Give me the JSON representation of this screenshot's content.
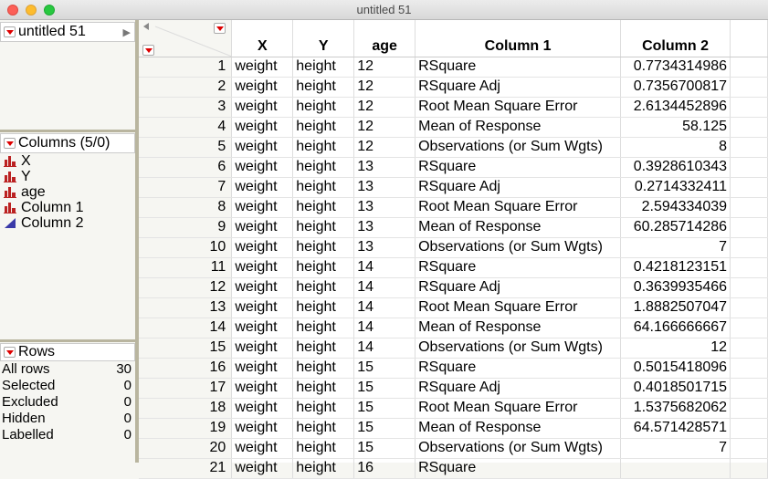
{
  "window": {
    "title": "untitled 51"
  },
  "table_panel": {
    "name": "untitled 51"
  },
  "columns_panel": {
    "title": "Columns (5/0)",
    "columns": [
      {
        "name": "X",
        "type": "nominal"
      },
      {
        "name": "Y",
        "type": "nominal"
      },
      {
        "name": "age",
        "type": "nominal"
      },
      {
        "name": "Column 1",
        "type": "nominal"
      },
      {
        "name": "Column 2",
        "type": "continuous"
      }
    ]
  },
  "rows_panel": {
    "title": "Rows",
    "stats": [
      {
        "label": "All rows",
        "value": "30"
      },
      {
        "label": "Selected",
        "value": "0"
      },
      {
        "label": "Excluded",
        "value": "0"
      },
      {
        "label": "Hidden",
        "value": "0"
      },
      {
        "label": "Labelled",
        "value": "0"
      }
    ]
  },
  "grid": {
    "headers": [
      "X",
      "Y",
      "age",
      "Column 1",
      "Column 2"
    ],
    "rows": [
      [
        "1",
        "weight",
        "height",
        "12",
        "RSquare",
        "0.7734314986"
      ],
      [
        "2",
        "weight",
        "height",
        "12",
        "RSquare Adj",
        "0.7356700817"
      ],
      [
        "3",
        "weight",
        "height",
        "12",
        "Root Mean Square Error",
        "2.6134452896"
      ],
      [
        "4",
        "weight",
        "height",
        "12",
        "Mean of Response",
        "58.125"
      ],
      [
        "5",
        "weight",
        "height",
        "12",
        "Observations (or Sum Wgts)",
        "8"
      ],
      [
        "6",
        "weight",
        "height",
        "13",
        "RSquare",
        "0.3928610343"
      ],
      [
        "7",
        "weight",
        "height",
        "13",
        "RSquare Adj",
        "0.2714332411"
      ],
      [
        "8",
        "weight",
        "height",
        "13",
        "Root Mean Square Error",
        "2.594334039"
      ],
      [
        "9",
        "weight",
        "height",
        "13",
        "Mean of Response",
        "60.285714286"
      ],
      [
        "10",
        "weight",
        "height",
        "13",
        "Observations (or Sum Wgts)",
        "7"
      ],
      [
        "11",
        "weight",
        "height",
        "14",
        "RSquare",
        "0.4218123151"
      ],
      [
        "12",
        "weight",
        "height",
        "14",
        "RSquare Adj",
        "0.3639935466"
      ],
      [
        "13",
        "weight",
        "height",
        "14",
        "Root Mean Square Error",
        "1.8882507047"
      ],
      [
        "14",
        "weight",
        "height",
        "14",
        "Mean of Response",
        "64.166666667"
      ],
      [
        "15",
        "weight",
        "height",
        "14",
        "Observations (or Sum Wgts)",
        "12"
      ],
      [
        "16",
        "weight",
        "height",
        "15",
        "RSquare",
        "0.5015418096"
      ],
      [
        "17",
        "weight",
        "height",
        "15",
        "RSquare Adj",
        "0.4018501715"
      ],
      [
        "18",
        "weight",
        "height",
        "15",
        "Root Mean Square Error",
        "1.5375682062"
      ],
      [
        "19",
        "weight",
        "height",
        "15",
        "Mean of Response",
        "64.571428571"
      ],
      [
        "20",
        "weight",
        "height",
        "15",
        "Observations (or Sum Wgts)",
        "7"
      ],
      [
        "21",
        "weight",
        "height",
        "16",
        "RSquare",
        ""
      ]
    ]
  }
}
